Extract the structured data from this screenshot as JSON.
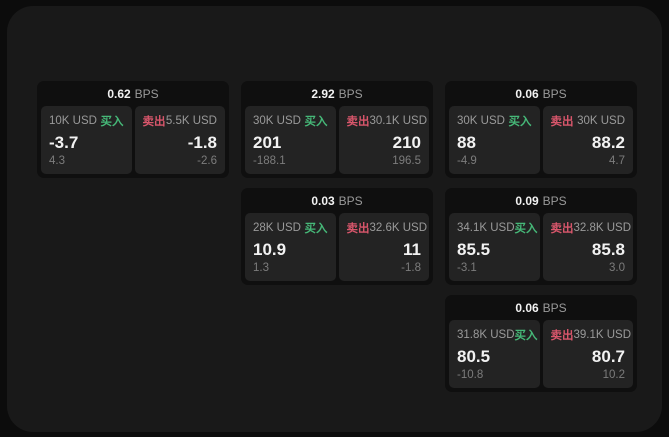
{
  "labels": {
    "bps_suffix": "BPS",
    "buy": "买入",
    "sell": "卖出"
  },
  "colors": {
    "buy_green": "#46b878",
    "sell_red": "#d8566b",
    "panel_bg": "#191919",
    "outer_bg": "#0c0c0c",
    "card_bg": "#0f0f0f",
    "tile_bg": "#232323",
    "text_primary": "#f2f2f2",
    "text_secondary": "#9a9a9a",
    "text_tertiary": "#7c7c7c"
  },
  "cards": [
    {
      "bps": "0.62",
      "buy": {
        "amount": "10K USD",
        "value": "-3.7",
        "sub": "4.3"
      },
      "sell": {
        "amount": "5.5K USD",
        "value": "-1.8",
        "sub": "-2.6"
      }
    },
    {
      "bps": "2.92",
      "buy": {
        "amount": "30K USD",
        "value": "201",
        "sub": "-188.1"
      },
      "sell": {
        "amount": "30.1K USD",
        "value": "210",
        "sub": "196.5"
      }
    },
    {
      "bps": "0.06",
      "buy": {
        "amount": "30K USD",
        "value": "88",
        "sub": "-4.9"
      },
      "sell": {
        "amount": "30K USD",
        "value": "88.2",
        "sub": "4.7"
      }
    },
    {
      "bps": "0.03",
      "buy": {
        "amount": "28K USD",
        "value": "10.9",
        "sub": "1.3"
      },
      "sell": {
        "amount": "32.6K USD",
        "value": "11",
        "sub": "-1.8"
      }
    },
    {
      "bps": "0.09",
      "buy": {
        "amount": "34.1K USD",
        "value": "85.5",
        "sub": "-3.1"
      },
      "sell": {
        "amount": "32.8K USD",
        "value": "85.8",
        "sub": "3.0"
      }
    },
    {
      "bps": "0.06",
      "buy": {
        "amount": "31.8K USD",
        "value": "80.5",
        "sub": "-10.8"
      },
      "sell": {
        "amount": "39.1K USD",
        "value": "80.7",
        "sub": "10.2"
      }
    }
  ]
}
